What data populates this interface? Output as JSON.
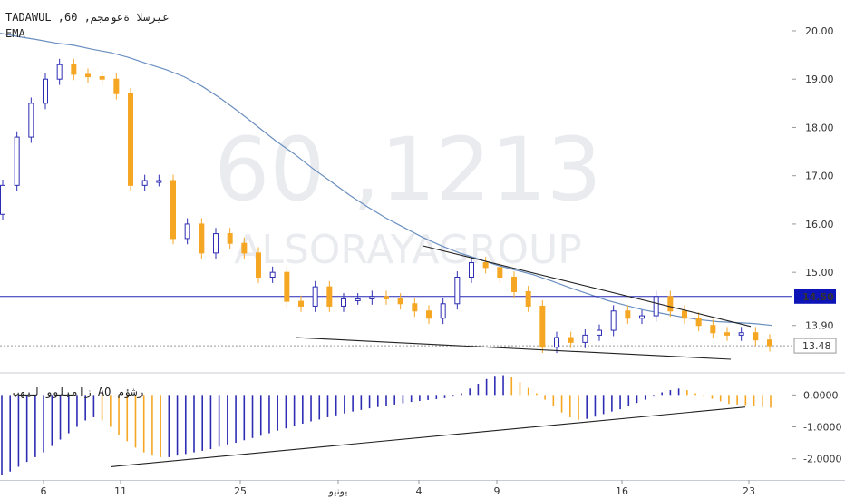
{
  "header": {
    "title": "TADAWUL ,60 ,عيرسلا ةعومجم",
    "indicator": "EMA",
    "ao_title": "زاميلوو ليهب AO رشؤم"
  },
  "watermark": {
    "line1": "60 ,1213",
    "line2": "ALSORAYAGROUP"
  },
  "colors": {
    "up": "#2d2db4",
    "down": "#f5a623",
    "ema": "#6a8fc0",
    "hline": "#2626b3",
    "trend": "#222222",
    "price_label_bg": "#0d15b7"
  },
  "chart_data": [
    {
      "type": "candlestick",
      "title": "TADAWUL ,60 ,عيرسلا ةعومجم",
      "y_ticks": [
        "20.00",
        "19.00",
        "18.00",
        "17.00",
        "16.00",
        "15.00",
        "13.90"
      ],
      "ylim": [
        13.2,
        20.3
      ],
      "x_ticks": [
        "6",
        "11",
        "25",
        "يونيو",
        "4",
        "9",
        "16",
        "23"
      ],
      "grid": false,
      "price_labels": [
        {
          "value": "14.50",
          "style": "filled"
        },
        {
          "value": "13.48",
          "style": "outline"
        }
      ],
      "horizontal_line": 14.5,
      "last_price": 13.48,
      "series": [
        {
          "name": "EMA",
          "values": [
            19.95,
            19.88,
            19.82,
            19.75,
            19.7,
            19.62,
            19.55,
            19.45,
            19.32,
            19.2,
            19.05,
            18.85,
            18.6,
            18.32,
            18.02,
            17.72,
            17.45,
            17.15,
            16.88,
            16.6,
            16.35,
            16.12,
            15.92,
            15.72,
            15.55,
            15.4,
            15.28,
            15.15,
            15.05,
            14.95,
            14.82,
            14.68,
            14.55,
            14.42,
            14.32,
            14.22,
            14.15,
            14.08,
            14.02,
            13.98,
            13.96,
            13.94,
            13.9
          ]
        }
      ],
      "candles_close": [
        16.8,
        17.8,
        18.5,
        19.0,
        19.3,
        19.1,
        19.05,
        19.0,
        18.7,
        16.8,
        16.9,
        16.9,
        15.7,
        16.0,
        15.4,
        15.8,
        15.6,
        15.4,
        14.9,
        15.0,
        14.4,
        14.3,
        14.7,
        14.3,
        14.45,
        14.45,
        14.5,
        14.45,
        14.35,
        14.2,
        14.05,
        14.35,
        14.9,
        15.2,
        15.1,
        14.9,
        14.6,
        14.3,
        13.45,
        13.65,
        13.55,
        13.7,
        13.8,
        14.2,
        14.05,
        14.1,
        14.5,
        14.2,
        14.05,
        13.9,
        13.75,
        13.7,
        13.75,
        13.6,
        13.48
      ]
    },
    {
      "type": "bar",
      "title": "زاميلوو ليهب AO رشؤم",
      "y_ticks": [
        "0.0000",
        "-1.0000",
        "-2.0000"
      ],
      "ylim": [
        -2.55,
        0.55
      ],
      "values": [
        -2.5,
        -2.4,
        -2.25,
        -2.1,
        -1.95,
        -1.8,
        -1.6,
        -1.4,
        -1.2,
        -1.0,
        -0.8,
        -0.7,
        -0.8,
        -1.0,
        -1.25,
        -1.45,
        -1.65,
        -1.8,
        -1.9,
        -1.95,
        -1.95,
        -1.9,
        -1.85,
        -1.8,
        -1.75,
        -1.7,
        -1.62,
        -1.55,
        -1.5,
        -1.42,
        -1.35,
        -1.28,
        -1.2,
        -1.12,
        -1.05,
        -0.98,
        -0.9,
        -0.83,
        -0.77,
        -0.7,
        -0.64,
        -0.58,
        -0.52,
        -0.47,
        -0.42,
        -0.38,
        -0.34,
        -0.3,
        -0.26,
        -0.22,
        -0.19,
        -0.16,
        -0.13,
        -0.1,
        -0.05,
        0.05,
        0.2,
        0.35,
        0.5,
        0.6,
        0.62,
        0.55,
        0.4,
        0.22,
        0.05,
        -0.15,
        -0.35,
        -0.55,
        -0.7,
        -0.78,
        -0.75,
        -0.68,
        -0.6,
        -0.52,
        -0.45,
        -0.35,
        -0.25,
        -0.15,
        -0.05,
        0.08,
        0.15,
        0.2,
        0.15,
        0.05,
        -0.05,
        -0.12,
        -0.2,
        -0.28,
        -0.3,
        -0.32,
        -0.35,
        -0.38,
        -0.4
      ]
    }
  ]
}
